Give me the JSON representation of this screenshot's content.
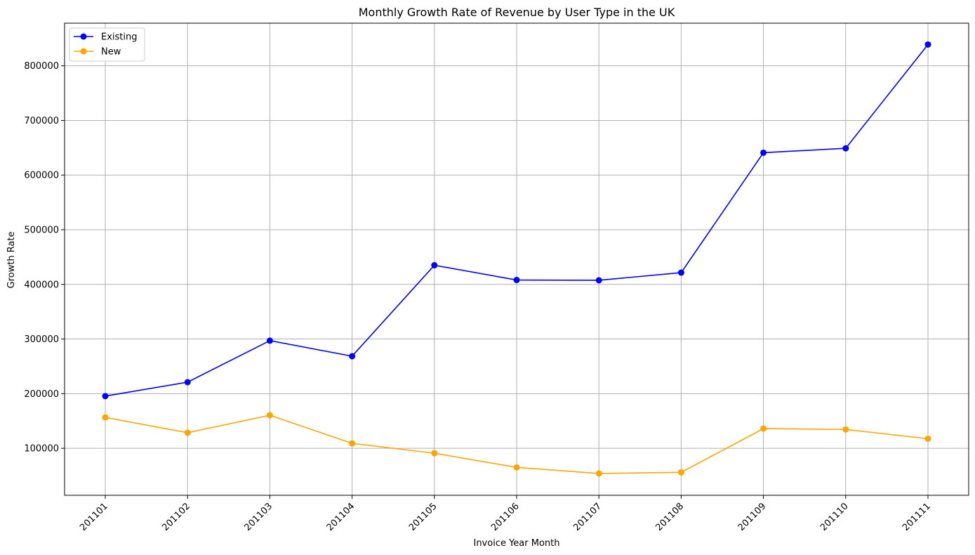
{
  "chart_data": {
    "type": "line",
    "title": "Monthly Growth Rate of Revenue by User Type in the UK",
    "xlabel": "Invoice Year Month",
    "ylabel": "Growth Rate",
    "categories": [
      "201101",
      "201102",
      "201103",
      "201104",
      "201105",
      "201106",
      "201107",
      "201108",
      "201109",
      "201110",
      "201111"
    ],
    "series": [
      {
        "name": "Existing",
        "color": "#0000ff",
        "values": [
          195500,
          221000,
          297000,
          268500,
          435000,
          408000,
          407500,
          421500,
          641000,
          649000,
          839000
        ]
      },
      {
        "name": "New",
        "color": "#ffa500",
        "values": [
          156500,
          128500,
          160500,
          109000,
          91000,
          65000,
          54000,
          56000,
          136000,
          134500,
          117500
        ]
      }
    ],
    "ylim": [
      14000,
      878000
    ],
    "yticks": [
      100000,
      200000,
      300000,
      400000,
      500000,
      600000,
      700000,
      800000
    ],
    "ytick_labels": [
      "100000",
      "200000",
      "300000",
      "400000",
      "500000",
      "600000",
      "700000",
      "800000"
    ],
    "grid": true,
    "legend_position": "top-left"
  }
}
